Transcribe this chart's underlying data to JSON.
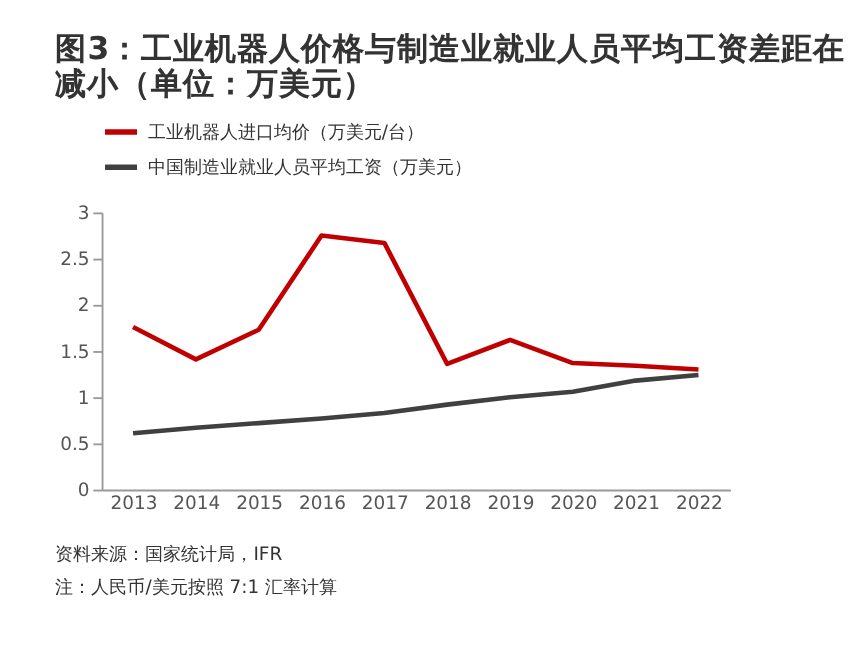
{
  "chart_data": {
    "type": "line",
    "title": "图3：工业机器人价格与制造业就业人员平均工资差距在减小（单位：万美元）",
    "categories": [
      "2013",
      "2014",
      "2015",
      "2016",
      "2017",
      "2018",
      "2019",
      "2020",
      "2021",
      "2022"
    ],
    "series": [
      {
        "name": "工业机器人进口均价（万美元/台）",
        "color": "#c00000",
        "values": [
          1.76,
          1.41,
          1.73,
          2.75,
          2.67,
          1.36,
          1.62,
          1.37,
          1.34,
          1.3
        ]
      },
      {
        "name": "中国制造业就业人员平均工资（万美元）",
        "color": "#404040",
        "values": [
          0.61,
          0.67,
          0.72,
          0.77,
          0.83,
          0.92,
          1.0,
          1.06,
          1.18,
          1.24
        ]
      }
    ],
    "ylim": [
      0,
      3
    ],
    "yticks": [
      0,
      0.5,
      1,
      1.5,
      2,
      2.5,
      3
    ],
    "grid": false,
    "legend": "top",
    "marker": "none",
    "line_style": "solid",
    "annotations": [
      "资料来源：国家统计局，IFR",
      "注：人民币/美元按照 7:1 汇率计算"
    ]
  }
}
